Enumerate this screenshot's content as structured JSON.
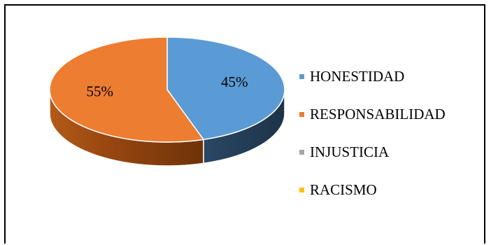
{
  "chart_data": {
    "type": "pie",
    "style": "3d",
    "title": "",
    "series": [
      {
        "name": "HONESTIDAD",
        "value": 45,
        "label": "45%",
        "color": "#5b9bd5",
        "side_color": "#223a52"
      },
      {
        "name": "RESPONSABILIDAD",
        "value": 55,
        "label": "55%",
        "color": "#ed7d31",
        "side_color": "#8b3f0c"
      },
      {
        "name": "INJUSTICIA",
        "value": 0,
        "label": "",
        "color": "#a5a5a5",
        "side_color": "#606060"
      },
      {
        "name": "RACISMO",
        "value": 0,
        "label": "",
        "color": "#ffc000",
        "side_color": "#9a7400"
      }
    ],
    "legend_position": "right"
  }
}
